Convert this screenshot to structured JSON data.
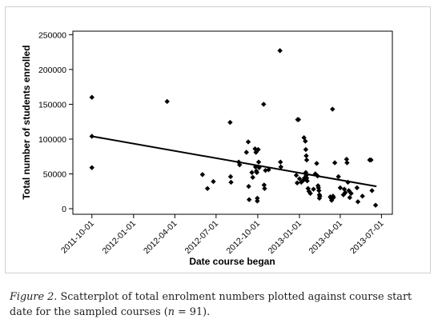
{
  "chart_data": {
    "type": "scatter",
    "xlabel": "Date course began",
    "ylabel": "Total number of students enrolled",
    "xlim": [
      "2011-08-20",
      "2013-07-25"
    ],
    "ylim": [
      -8000,
      255000
    ],
    "x_ticks": [
      "2011-10-01",
      "2012-01-01",
      "2012-04-01",
      "2012-07-01",
      "2012-10-01",
      "2013-01-01",
      "2013-04-01",
      "2013-07-01"
    ],
    "y_ticks": [
      0,
      50000,
      100000,
      150000,
      200000,
      250000
    ],
    "y_tick_labels": [
      "0",
      "50000",
      "100000",
      "150000",
      "200000",
      "250000"
    ],
    "grid": false,
    "trend_line": {
      "points": [
        [
          "2011-10-01",
          104000
        ],
        [
          "2013-06-20",
          32000
        ]
      ]
    },
    "points": [
      [
        "2011-10-01",
        160000
      ],
      [
        "2011-10-01",
        104000
      ],
      [
        "2011-10-01",
        59000
      ],
      [
        "2012-03-15",
        154000
      ],
      [
        "2012-06-01",
        49000
      ],
      [
        "2012-06-12",
        29000
      ],
      [
        "2012-06-25",
        39000
      ],
      [
        "2012-08-01",
        124000
      ],
      [
        "2012-08-02",
        46000
      ],
      [
        "2012-08-03",
        38000
      ],
      [
        "2012-08-20",
        67000
      ],
      [
        "2012-08-22",
        63000
      ],
      [
        "2012-09-06",
        81000
      ],
      [
        "2012-09-10",
        96000
      ],
      [
        "2012-09-11",
        32000
      ],
      [
        "2012-09-12",
        13000
      ],
      [
        "2012-09-18",
        52000
      ],
      [
        "2012-09-20",
        45000
      ],
      [
        "2012-09-25",
        86000
      ],
      [
        "2012-09-26",
        60000
      ],
      [
        "2012-09-27",
        81000
      ],
      [
        "2012-09-28",
        54000
      ],
      [
        "2012-09-29",
        52000
      ],
      [
        "2012-09-30",
        15000
      ],
      [
        "2012-09-30",
        11000
      ],
      [
        "2012-10-02",
        85000
      ],
      [
        "2012-10-03",
        67000
      ],
      [
        "2012-10-04",
        59000
      ],
      [
        "2012-10-14",
        150000
      ],
      [
        "2012-10-15",
        34000
      ],
      [
        "2012-10-16",
        29000
      ],
      [
        "2012-10-18",
        55000
      ],
      [
        "2012-10-25",
        56000
      ],
      [
        "2012-11-19",
        227000
      ],
      [
        "2012-11-20",
        67000
      ],
      [
        "2012-11-21",
        60000
      ],
      [
        "2012-12-28",
        128000
      ],
      [
        "2012-12-30",
        128000
      ],
      [
        "2012-12-25",
        48000
      ],
      [
        "2012-12-27",
        37000
      ],
      [
        "2013-01-01",
        43000
      ],
      [
        "2013-01-05",
        38000
      ],
      [
        "2013-01-10",
        41000
      ],
      [
        "2013-01-11",
        102000
      ],
      [
        "2013-01-12",
        44000
      ],
      [
        "2013-01-14",
        97000
      ],
      [
        "2013-01-15",
        85000
      ],
      [
        "2013-01-16",
        76000
      ],
      [
        "2013-01-17",
        70000
      ],
      [
        "2013-01-15",
        52000
      ],
      [
        "2013-01-16",
        48000
      ],
      [
        "2013-01-17",
        44000
      ],
      [
        "2013-01-18",
        40000
      ],
      [
        "2013-01-20",
        29000
      ],
      [
        "2013-01-22",
        25000
      ],
      [
        "2013-01-25",
        22000
      ],
      [
        "2013-02-01",
        28000
      ],
      [
        "2013-02-05",
        50000
      ],
      [
        "2013-02-08",
        65000
      ],
      [
        "2013-02-10",
        47000
      ],
      [
        "2013-02-11",
        33000
      ],
      [
        "2013-02-12",
        30000
      ],
      [
        "2013-02-13",
        26000
      ],
      [
        "2013-02-14",
        20000
      ],
      [
        "2013-02-14",
        15000
      ],
      [
        "2013-02-15",
        18000
      ],
      [
        "2013-03-10",
        17000
      ],
      [
        "2013-03-12",
        15000
      ],
      [
        "2013-03-13",
        12000
      ],
      [
        "2013-03-15",
        143000
      ],
      [
        "2013-03-16",
        18000
      ],
      [
        "2013-03-17",
        16000
      ],
      [
        "2013-03-20",
        66000
      ],
      [
        "2013-03-28",
        46000
      ],
      [
        "2013-04-01",
        30000
      ],
      [
        "2013-04-08",
        20000
      ],
      [
        "2013-04-10",
        28000
      ],
      [
        "2013-04-12",
        23000
      ],
      [
        "2013-04-15",
        71000
      ],
      [
        "2013-04-16",
        66000
      ],
      [
        "2013-04-18",
        38000
      ],
      [
        "2013-04-20",
        26000
      ],
      [
        "2013-04-22",
        16000
      ],
      [
        "2013-04-25",
        22000
      ],
      [
        "2013-05-08",
        30000
      ],
      [
        "2013-05-10",
        10000
      ],
      [
        "2013-05-20",
        18000
      ],
      [
        "2013-06-05",
        70000
      ],
      [
        "2013-06-08",
        70000
      ],
      [
        "2013-06-10",
        26000
      ],
      [
        "2013-06-18",
        5000
      ]
    ]
  },
  "caption": {
    "figure_label": "Figure 2.",
    "text_before_n": " Scatterplot of total enrolment numbers plotted against course start date for the sampled courses (",
    "n_symbol": "n",
    "text_after_n": " = 91)."
  }
}
